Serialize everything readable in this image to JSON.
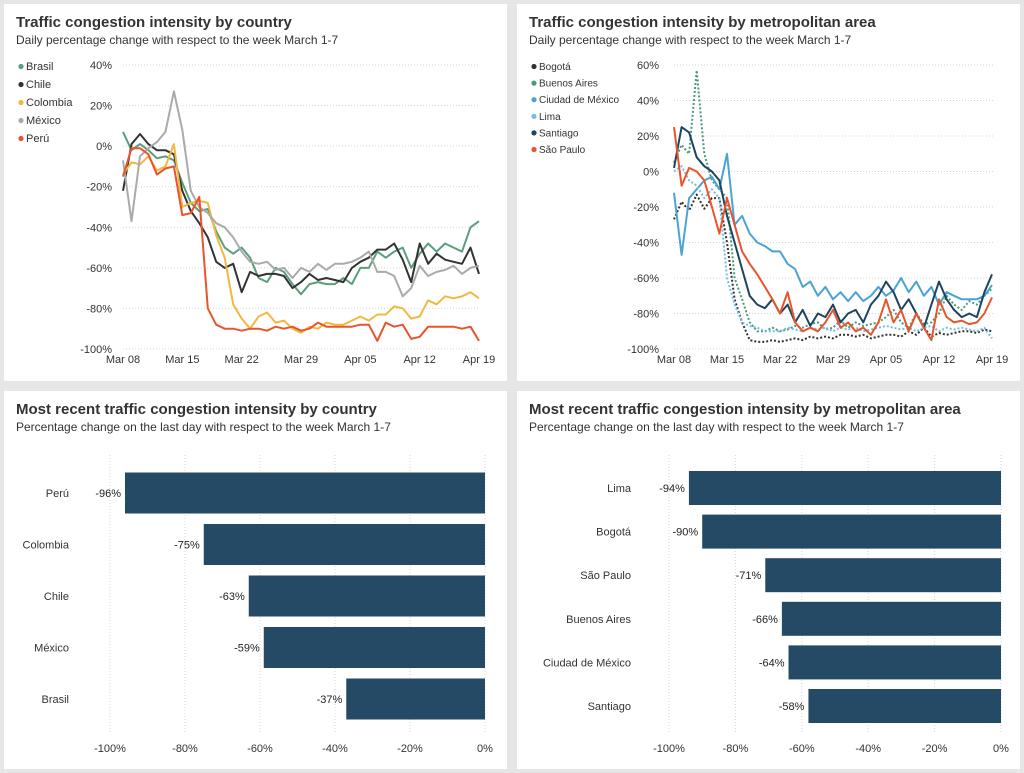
{
  "chart_data": [
    {
      "id": "country_lines",
      "type": "line",
      "title": "Traffic congestion intensity by country",
      "subtitle": "Daily percentage change with respect to the week March 1-7",
      "x_tick_labels": [
        "Mar 08",
        "Mar 15",
        "Mar 22",
        "Mar 29",
        "Apr 05",
        "Apr 12",
        "Apr 19"
      ],
      "x_tick_days": [
        0,
        7,
        14,
        21,
        28,
        35,
        42
      ],
      "y_ticks": [
        40,
        20,
        0,
        -20,
        -40,
        -60,
        -80,
        -100
      ],
      "y_tick_labels": [
        "40%",
        "20%",
        "0%",
        "-20%",
        "-40%",
        "-60%",
        "-80%",
        "-100%"
      ],
      "ylim": [
        -100,
        40
      ],
      "legend_position": "top-left",
      "series": [
        {
          "name": "Brasil",
          "color": "#5a9e7c",
          "dash": false,
          "values": [
            7,
            -2,
            1,
            -2,
            -6,
            -5,
            -7,
            -18,
            -28,
            -32,
            -31,
            -42,
            -50,
            -53,
            -50,
            -55,
            -65,
            -67,
            -60,
            -62,
            -68,
            -73,
            -68,
            -67,
            -68,
            -68,
            -65,
            -68,
            -60,
            -60,
            -52,
            -55,
            -52,
            -50,
            -60,
            -53,
            -48,
            -52,
            -48,
            -50,
            -52,
            -40,
            -37
          ]
        },
        {
          "name": "Chile",
          "color": "#333333",
          "dash": false,
          "values": [
            -22,
            1,
            6,
            1,
            -2,
            -2,
            -4,
            -22,
            -32,
            -38,
            -45,
            -57,
            -60,
            -58,
            -72,
            -62,
            -64,
            -63,
            -63,
            -64,
            -70,
            -67,
            -63,
            -66,
            -65,
            -66,
            -67,
            -60,
            -57,
            -55,
            -51,
            -51,
            -48,
            -56,
            -67,
            -48,
            -58,
            -53,
            -56,
            -57,
            -58,
            -50,
            -63
          ]
        },
        {
          "name": "Colombia",
          "color": "#f2b840",
          "dash": false,
          "values": [
            -14,
            -8,
            -9,
            -5,
            -12,
            -10,
            1,
            -30,
            -28,
            -27,
            -28,
            -44,
            -55,
            -78,
            -85,
            -90,
            -84,
            -82,
            -87,
            -86,
            -90,
            -92,
            -89,
            -90,
            -87,
            -88,
            -88,
            -86,
            -84,
            -86,
            -83,
            -83,
            -79,
            -80,
            -85,
            -84,
            -76,
            -78,
            -74,
            -75,
            -74,
            -72,
            -75
          ]
        },
        {
          "name": "México",
          "color": "#aaaaaa",
          "dash": false,
          "values": [
            -7,
            -37,
            -5,
            -1,
            2,
            7,
            27,
            8,
            -22,
            -30,
            -33,
            -38,
            -40,
            -45,
            -52,
            -57,
            -58,
            -57,
            -61,
            -60,
            -65,
            -60,
            -62,
            -58,
            -61,
            -58,
            -58,
            -57,
            -55,
            -52,
            -62,
            -62,
            -64,
            -74,
            -70,
            -59,
            -64,
            -62,
            -61,
            -59,
            -63,
            -60,
            -59
          ]
        },
        {
          "name": "Perú",
          "color": "#e8552d",
          "dash": false,
          "values": [
            -15,
            -1,
            -1,
            -4,
            -14,
            -11,
            -10,
            -34,
            -33,
            -25,
            -80,
            -88,
            -90,
            -90,
            -91,
            -90,
            -90,
            -91,
            -89,
            -90,
            -89,
            -91,
            -90,
            -87,
            -89,
            -89,
            -89,
            -89,
            -88,
            -88,
            -96,
            -87,
            -89,
            -88,
            -95,
            -94,
            -89,
            -89,
            -89,
            -89,
            -90,
            -89,
            -96
          ]
        }
      ]
    },
    {
      "id": "metro_lines",
      "type": "line",
      "title": "Traffic congestion intensity by metropolitan area",
      "subtitle": "Daily percentage change with respect to the week March 1-7",
      "x_tick_labels": [
        "Mar 08",
        "Mar 15",
        "Mar 22",
        "Mar 29",
        "Apr 05",
        "Apr 12",
        "Apr 19"
      ],
      "x_tick_days": [
        0,
        7,
        14,
        21,
        28,
        35,
        42
      ],
      "y_ticks": [
        60,
        40,
        20,
        0,
        -20,
        -40,
        -60,
        -80,
        -100
      ],
      "y_tick_labels": [
        "60%",
        "40%",
        "20%",
        "0%",
        "-20%",
        "-40%",
        "-60%",
        "-80%",
        "-100%"
      ],
      "ylim": [
        -100,
        60
      ],
      "legend_position": "top-left",
      "series": [
        {
          "name": "Bogotá",
          "color": "#333333",
          "dash": true,
          "values": [
            -27,
            -17,
            -22,
            -13,
            -21,
            -15,
            -15,
            -40,
            -72,
            -85,
            -95,
            -96,
            -96,
            -95,
            -96,
            -95,
            -94,
            -95,
            -93,
            -94,
            -93,
            -94,
            -92,
            -92,
            -93,
            -92,
            -94,
            -93,
            -92,
            -92,
            -93,
            -90,
            -92,
            -88,
            -93,
            -91,
            -92,
            -91,
            -90,
            -90,
            -91,
            -89,
            -90
          ]
        },
        {
          "name": "Buenos Aires",
          "color": "#4a9a7a",
          "dash": true,
          "values": [
            5,
            15,
            10,
            57,
            10,
            -5,
            -10,
            -15,
            -60,
            -72,
            -85,
            -90,
            -90,
            -88,
            -90,
            -89,
            -87,
            -88,
            -86,
            -85,
            -89,
            -88,
            -84,
            -88,
            -85,
            -87,
            -86,
            -85,
            -82,
            -78,
            -85,
            -88,
            -80,
            -86,
            -85,
            -80,
            -70,
            -75,
            -78,
            -73,
            -75,
            -70,
            -66
          ]
        },
        {
          "name": "Ciudad de México",
          "color": "#4ba3d3",
          "dash": false,
          "values": [
            -12,
            -47,
            -15,
            -10,
            -5,
            -3,
            -10,
            10,
            -30,
            -25,
            -35,
            -40,
            -42,
            -45,
            -45,
            -52,
            -55,
            -65,
            -62,
            -70,
            -65,
            -72,
            -68,
            -73,
            -68,
            -73,
            -70,
            -65,
            -70,
            -67,
            -60,
            -68,
            -62,
            -70,
            -65,
            -75,
            -68,
            -70,
            -72,
            -72,
            -72,
            -70,
            -64
          ]
        },
        {
          "name": "Lima",
          "color": "#74bde3",
          "dash": true,
          "values": [
            0,
            3,
            -5,
            -8,
            -15,
            -10,
            -15,
            -60,
            -75,
            -85,
            -87,
            -88,
            -90,
            -90,
            -90,
            -88,
            -89,
            -90,
            -88,
            -89,
            -88,
            -90,
            -88,
            -89,
            -88,
            -90,
            -89,
            -88,
            -87,
            -88,
            -89,
            -88,
            -90,
            -88,
            -87,
            -90,
            -88,
            -89,
            -88,
            -89,
            -90,
            -88,
            -94
          ]
        },
        {
          "name": "Santiago",
          "color": "#1e4460",
          "dash": false,
          "values": [
            2,
            25,
            22,
            8,
            3,
            0,
            -5,
            -25,
            -40,
            -55,
            -70,
            -75,
            -77,
            -72,
            -80,
            -75,
            -85,
            -78,
            -87,
            -80,
            -82,
            -75,
            -85,
            -80,
            -78,
            -85,
            -75,
            -70,
            -62,
            -68,
            -78,
            -72,
            -80,
            -88,
            -75,
            -62,
            -72,
            -78,
            -82,
            -80,
            -82,
            -68,
            -58
          ]
        },
        {
          "name": "São Paulo",
          "color": "#e8552d",
          "dash": false,
          "values": [
            25,
            -8,
            2,
            0,
            -5,
            -20,
            -35,
            -15,
            -30,
            -45,
            -52,
            -58,
            -65,
            -72,
            -80,
            -68,
            -85,
            -90,
            -88,
            -90,
            -85,
            -78,
            -88,
            -85,
            -90,
            -88,
            -92,
            -85,
            -72,
            -85,
            -78,
            -90,
            -80,
            -88,
            -95,
            -72,
            -82,
            -85,
            -84,
            -86,
            -85,
            -80,
            -71
          ]
        }
      ]
    },
    {
      "id": "country_bars",
      "type": "bar",
      "orientation": "horizontal",
      "title": "Most recent traffic congestion intensity by country",
      "subtitle": "Percentage change on the last day with respect to the week March 1-7",
      "categories": [
        "Perú",
        "Colombia",
        "Chile",
        "México",
        "Brasil"
      ],
      "values": [
        -96,
        -75,
        -63,
        -59,
        -37
      ],
      "value_labels": [
        "-96%",
        "-75%",
        "-63%",
        "-59%",
        "-37%"
      ],
      "x_ticks": [
        -100,
        -80,
        -60,
        -40,
        -20,
        0
      ],
      "x_tick_labels": [
        "-100%",
        "-80%",
        "-60%",
        "-40%",
        "-20%",
        "0%"
      ],
      "xlim": [
        -100,
        0
      ],
      "color": "#244a66"
    },
    {
      "id": "metro_bars",
      "type": "bar",
      "orientation": "horizontal",
      "title": "Most recent traffic congestion intensity by metropolitan area",
      "subtitle": "Percentage change on the last day with respect to the week March 1-7",
      "categories": [
        "Lima",
        "Bogotá",
        "São Paulo",
        "Buenos Aires",
        "Ciudad de México",
        "Santiago"
      ],
      "values": [
        -94,
        -90,
        -71,
        -66,
        -64,
        -58
      ],
      "value_labels": [
        "-94%",
        "-90%",
        "-71%",
        "-66%",
        "-64%",
        "-58%"
      ],
      "x_ticks": [
        -100,
        -80,
        -60,
        -40,
        -20,
        0
      ],
      "x_tick_labels": [
        "-100%",
        "-80%",
        "-60%",
        "-40%",
        "-20%",
        "0%"
      ],
      "xlim": [
        -100,
        0
      ],
      "color": "#244a66"
    }
  ]
}
